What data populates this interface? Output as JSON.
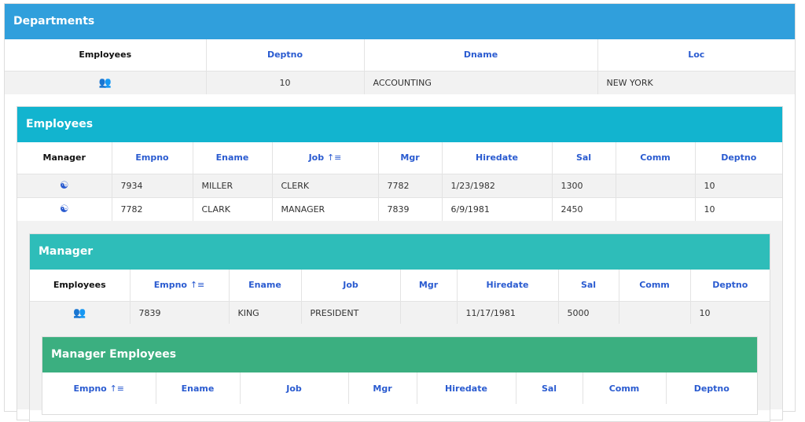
{
  "colors": {
    "departments": "#309fdc",
    "employees": "#12b4cf",
    "manager": "#2ebdb9",
    "manager_employees": "#3baf80",
    "header_link": "#2a5bd0"
  },
  "departments": {
    "title": "Departments",
    "columns": [
      "Employees",
      "Deptno",
      "Dname",
      "Loc"
    ],
    "rows": [
      {
        "icon": "users-icon",
        "deptno": "10",
        "dname": "ACCOUNTING",
        "loc": "NEW YORK"
      }
    ]
  },
  "employees": {
    "title": "Employees",
    "columns": [
      "Manager",
      "Empno",
      "Ename",
      "Job",
      "Mgr",
      "Hiredate",
      "Sal",
      "Comm",
      "Deptno"
    ],
    "sorted_column": "Job",
    "sort_icon": "sort-ascending-icon",
    "rows": [
      [
        "7934",
        "MILLER",
        "CLERK",
        "7782",
        "1/23/1982",
        "1300",
        "",
        "10"
      ],
      [
        "7782",
        "CLARK",
        "MANAGER",
        "7839",
        "6/9/1981",
        "2450",
        "",
        "10"
      ]
    ]
  },
  "manager": {
    "title": "Manager",
    "columns": [
      "Employees",
      "Empno",
      "Ename",
      "Job",
      "Mgr",
      "Hiredate",
      "Sal",
      "Comm",
      "Deptno"
    ],
    "sorted_column": "Empno",
    "rows": [
      [
        "7839",
        "KING",
        "PRESIDENT",
        "",
        "11/17/1981",
        "5000",
        "",
        "10"
      ]
    ]
  },
  "manager_employees": {
    "title": "Manager Employees",
    "columns": [
      "Empno",
      "Ename",
      "Job",
      "Mgr",
      "Hiredate",
      "Sal",
      "Comm",
      "Deptno"
    ],
    "sorted_column": "Empno"
  }
}
